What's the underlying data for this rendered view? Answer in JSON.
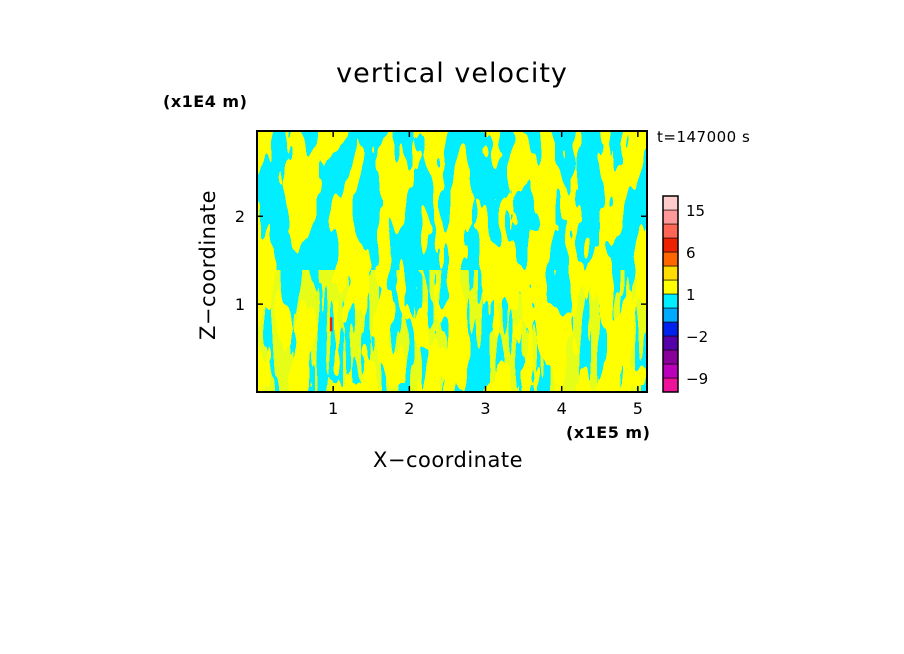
{
  "chart_data": {
    "type": "heatmap",
    "title": "vertical velocity",
    "xlabel": "X−coordinate",
    "ylabel": "Z−coordinate",
    "x_unit_label": "(x1E5 m)",
    "y_unit_label": "(x1E4 m)",
    "time_label": "t=147000 s",
    "xlim": [
      0,
      5.12
    ],
    "ylim": [
      0,
      2.97
    ],
    "x_ticks": [
      1,
      2,
      3,
      4,
      5
    ],
    "x_tick_labels": [
      "1",
      "2",
      "3",
      "4",
      "5"
    ],
    "y_ticks": [
      1,
      2
    ],
    "y_tick_labels": [
      "1",
      "2"
    ],
    "field_colors": {
      "positive": "#ffff00",
      "negative": "#00eeff",
      "strong_positive": "#ee2200"
    },
    "colorbar": {
      "levels": [
        -12,
        -9,
        -6,
        -4,
        -2,
        -1,
        0,
        1,
        2,
        4,
        6,
        9,
        12,
        15,
        20
      ],
      "tick_labels": [
        {
          "value": 15,
          "label": "15"
        },
        {
          "value": 6,
          "label": "6"
        },
        {
          "value": 1,
          "label": "1"
        },
        {
          "value": -2,
          "label": "−2"
        },
        {
          "value": -9,
          "label": "−9"
        }
      ],
      "colors": [
        "#ee1199",
        "#bb00bb",
        "#880099",
        "#5500aa",
        "#0022ee",
        "#00aaff",
        "#00eeff",
        "#ffff00",
        "#ffdd00",
        "#ff6600",
        "#ee2200",
        "#ff6655",
        "#ff9999",
        "#ffcccc",
        "#ffeeee"
      ]
    }
  }
}
